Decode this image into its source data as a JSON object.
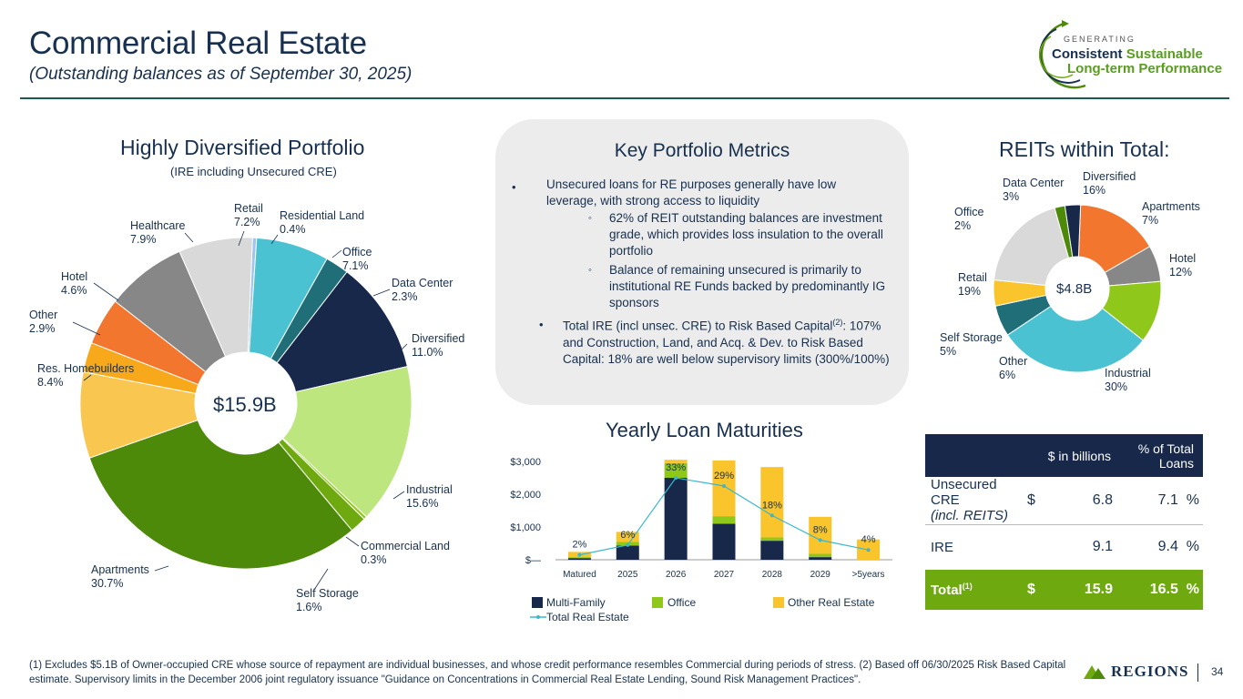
{
  "header": {
    "title": "Commercial Real Estate",
    "subtitle": "(Outstanding balances as of September 30, 2025)"
  },
  "logo": {
    "line0": "GENERATING",
    "line1a": "Consistent",
    "line1b": "Sustainable",
    "line2": "Long-term Performance"
  },
  "portfolio": {
    "title": "Highly Diversified Portfolio",
    "subtitle": "(IRE including Unsecured CRE)"
  },
  "metrics": {
    "title": "Key Portfolio Metrics",
    "b1": "Unsecured loans for RE purposes generally have low leverage, with strong access to liquidity",
    "b1a": "62% of REIT outstanding balances are investment grade, which provides loss insulation to the overall portfolio",
    "b1b": "Balance of remaining unsecured is primarily to institutional RE Funds backed by predominantly IG sponsors",
    "b2_pre": "Total IRE (incl unsec. CRE) to Risk Based Capital",
    "b2_sup": "(2)",
    "b2_post": ": 107% and Construction, Land, and Acq. & Dev. to Risk Based Capital: 18% are well below supervisory limits (300%/100%)"
  },
  "reits": {
    "title": "REITs within Total:"
  },
  "maturities": {
    "title": "Yearly Loan Maturities"
  },
  "table": {
    "col1": "$ in billions",
    "col2": "% of Total Loans",
    "rows": [
      {
        "label": "Unsecured CRE",
        "label2": "(incl. REITS)",
        "dollar": "$",
        "value": "6.8",
        "pct": "7.1",
        "pct_sign": "%"
      },
      {
        "label": "IRE",
        "value": "9.1",
        "pct": "9.4",
        "pct_sign": "%"
      }
    ],
    "total": {
      "label": "Total",
      "sup": "(1)",
      "dollar": "$",
      "value": "15.9",
      "pct": "16.5",
      "pct_sign": "%"
    }
  },
  "footnote": "(1) Excludes $5.1B of Owner-occupied CRE whose source of repayment are individual businesses, and whose credit performance resembles Commercial during periods of stress. (2) Based off 06/30/2025 Risk Based Capital estimate. Supervisory limits in the December 2006 joint regulatory issuance \"Guidance on Concentrations in Commercial Real Estate Lending, Sound Risk Management Practices\".",
  "brand": "REGIONS",
  "page_number": "34",
  "chart_data": [
    {
      "type": "pie",
      "title": "Highly Diversified Portfolio",
      "center_label": "$15.9B",
      "categories": [
        "Residential Land",
        "Office",
        "Data Center",
        "Diversified",
        "Industrial",
        "Commercial Land",
        "Self Storage",
        "Apartments",
        "Res. Homebuilders",
        "Other",
        "Hotel",
        "Healthcare",
        "Retail"
      ],
      "values": [
        0.4,
        7.1,
        2.3,
        11.0,
        15.6,
        0.3,
        1.6,
        30.7,
        8.4,
        2.9,
        4.6,
        7.9,
        7.2
      ],
      "value_labels": [
        "0.4%",
        "7.1%",
        "2.3%",
        "11.0%",
        "15.6%",
        "0.3%",
        "1.6%",
        "30.7%",
        "8.4%",
        "2.9%",
        "4.6%",
        "7.9%",
        "7.2%"
      ],
      "colors": [
        "#9fc5f0",
        "#4ac2d2",
        "#1f6e78",
        "#17284a",
        "#bde67f",
        "#8fc81a",
        "#6ea90f",
        "#4e8a0a",
        "#f9c64f",
        "#f7a81b",
        "#f2762e",
        "#878787",
        "#d9d9d9"
      ]
    },
    {
      "type": "pie",
      "title": "REITs within Total:",
      "center_label": "$4.8B",
      "categories": [
        "Diversified",
        "Apartments",
        "Hotel",
        "Industrial",
        "Other",
        "Self Storage",
        "Retail",
        "Office",
        "Data Center"
      ],
      "values": [
        16,
        7,
        12,
        30,
        6,
        5,
        19,
        2,
        3
      ],
      "value_labels": [
        "16%",
        "7%",
        "12%",
        "30%",
        "6%",
        "5%",
        "19%",
        "2%",
        "3%"
      ],
      "colors": [
        "#f2762e",
        "#878787",
        "#8fc81a",
        "#4ac2d2",
        "#1f6e78",
        "#f9c42c",
        "#d9d9d9",
        "#4e8a0a",
        "#17284a"
      ]
    },
    {
      "type": "bar",
      "title": "Yearly Loan Maturities",
      "categories": [
        "Matured",
        "2025",
        "2026",
        "2027",
        "2028",
        "2029",
        ">5years"
      ],
      "series": [
        {
          "name": "Multi-Family",
          "color": "#17284a",
          "values": [
            50,
            430,
            2500,
            1100,
            580,
            80,
            0
          ]
        },
        {
          "name": "Office",
          "color": "#8fc81a",
          "values": [
            30,
            120,
            450,
            230,
            100,
            100,
            0
          ]
        },
        {
          "name": "Other Real Estate",
          "color": "#f9c42c",
          "values": [
            160,
            300,
            100,
            1700,
            2150,
            1130,
            620
          ]
        }
      ],
      "line": {
        "name": "Total Real Estate",
        "color": "#3bb8cc",
        "values": [
          150,
          450,
          2500,
          2250,
          1350,
          600,
          300
        ]
      },
      "line_labels": [
        "2%",
        "6%",
        "33%",
        "29%",
        "18%",
        "8%",
        "4%"
      ],
      "yticks": [
        "$—",
        "$1,000",
        "$2,000",
        "$3,000"
      ],
      "ylim": [
        0,
        3000
      ]
    }
  ]
}
